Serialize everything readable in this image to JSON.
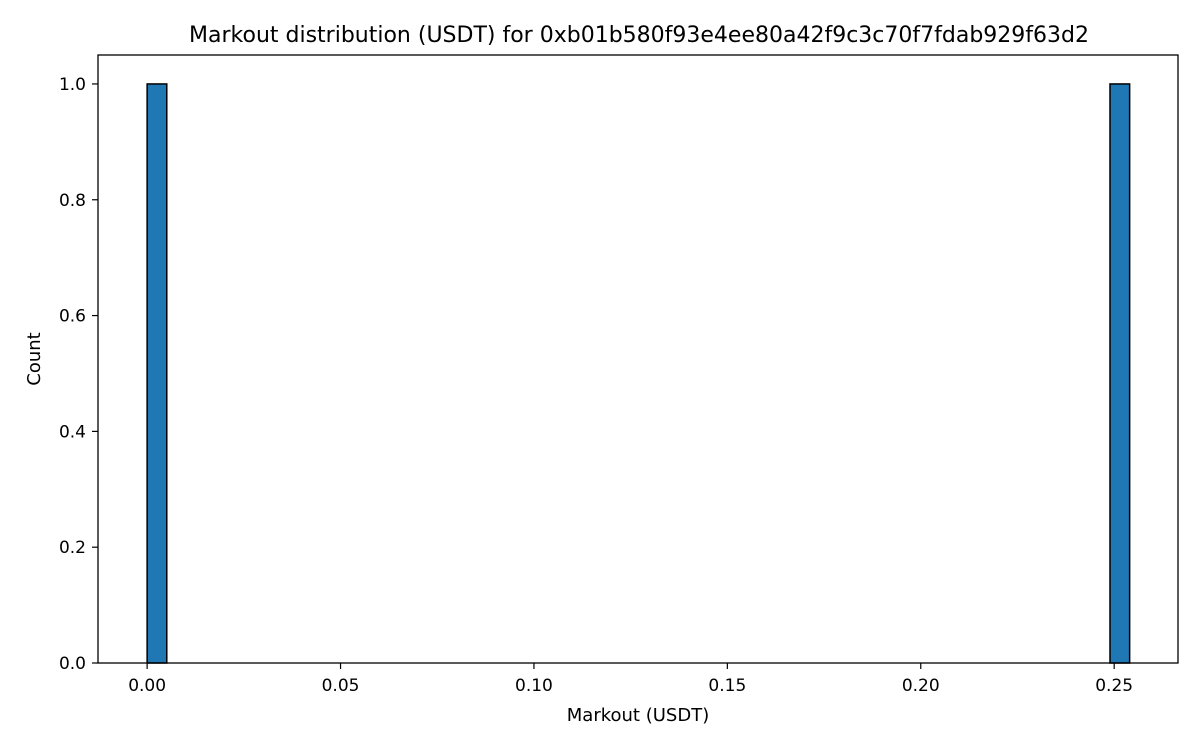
{
  "chart_data": {
    "type": "bar",
    "title": "Markout distribution (USDT) for 0xb01b580f93e4ee80a42f9c3c70f7fdab929f63d2",
    "xlabel": "Markout (USDT)",
    "ylabel": "Count",
    "xlim": [
      -0.0127,
      0.2665
    ],
    "ylim": [
      0,
      1.05
    ],
    "grid": false,
    "bar_color": "#1f77b4",
    "edge_color": "#000000",
    "bars": [
      {
        "x_start": 0.0,
        "x_end": 0.00508,
        "count": 1
      },
      {
        "x_start": 0.24892,
        "x_end": 0.254,
        "count": 1
      }
    ],
    "x_ticks": [
      {
        "value": 0.0,
        "label": "0.00"
      },
      {
        "value": 0.05,
        "label": "0.05"
      },
      {
        "value": 0.1,
        "label": "0.10"
      },
      {
        "value": 0.15,
        "label": "0.15"
      },
      {
        "value": 0.2,
        "label": "0.20"
      },
      {
        "value": 0.25,
        "label": "0.25"
      }
    ],
    "y_ticks": [
      {
        "value": 0.0,
        "label": "0.0"
      },
      {
        "value": 0.2,
        "label": "0.2"
      },
      {
        "value": 0.4,
        "label": "0.4"
      },
      {
        "value": 0.6,
        "label": "0.6"
      },
      {
        "value": 0.8,
        "label": "0.8"
      },
      {
        "value": 1.0,
        "label": "1.0"
      }
    ]
  }
}
